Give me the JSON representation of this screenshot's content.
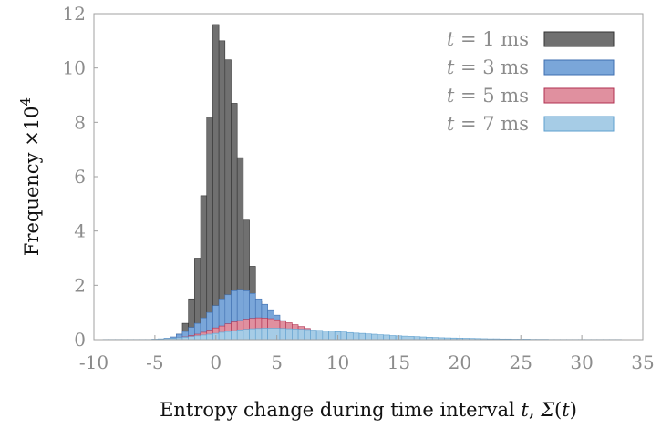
{
  "chart_data": {
    "type": "bar",
    "xlabel": "Entropy change during time interval t, Σ(t)",
    "ylabel": "Frequency ×10⁴",
    "xlim": [
      -10,
      35
    ],
    "ylim": [
      0,
      12
    ],
    "xticks": [
      -10,
      -5,
      0,
      5,
      10,
      15,
      20,
      25,
      30,
      35
    ],
    "yticks": [
      0,
      2,
      4,
      6,
      8,
      10,
      12
    ],
    "xtick_labels": [
      "-10",
      "-5",
      "0",
      "5",
      "10",
      "15",
      "20",
      "25",
      "30",
      "35"
    ],
    "ytick_labels": [
      "0",
      "2",
      "4",
      "6",
      "8",
      "10",
      "12"
    ],
    "legend_position": "top-right",
    "bin_width": 0.5,
    "grid": false,
    "series": [
      {
        "name": "t = 1 ms",
        "color": "#707070",
        "x": [
          -3.5,
          -3,
          -2.5,
          -2,
          -1.5,
          -1,
          -0.5,
          0,
          0.5,
          1,
          1.5,
          2,
          2.5,
          3,
          3.5,
          4,
          4.5
        ],
        "values": [
          0.05,
          0.2,
          0.6,
          1.5,
          3.0,
          5.3,
          8.2,
          11.6,
          11.0,
          10.3,
          8.7,
          6.7,
          4.4,
          2.7,
          1.4,
          0.5,
          0.15
        ]
      },
      {
        "name": "t = 3 ms",
        "color": "#7aa6d9",
        "x": [
          -4.5,
          -4,
          -3.5,
          -3,
          -2.5,
          -2,
          -1.5,
          -1,
          -0.5,
          0,
          0.5,
          1,
          1.5,
          2,
          2.5,
          3,
          3.5,
          4,
          4.5,
          5,
          5.5,
          6,
          6.5,
          7,
          7.5,
          8,
          8.5,
          9,
          9.5
        ],
        "values": [
          0.02,
          0.05,
          0.1,
          0.2,
          0.3,
          0.45,
          0.6,
          0.8,
          1.0,
          1.25,
          1.5,
          1.65,
          1.8,
          1.85,
          1.8,
          1.7,
          1.5,
          1.3,
          1.1,
          0.9,
          0.7,
          0.55,
          0.42,
          0.3,
          0.2,
          0.14,
          0.09,
          0.05,
          0.03
        ]
      },
      {
        "name": "t = 5 ms",
        "color": "#e0909f",
        "x": [
          -4,
          -3.5,
          -3,
          -2.5,
          -2,
          -1.5,
          -1,
          -0.5,
          0,
          0.5,
          1,
          1.5,
          2,
          2.5,
          3,
          3.5,
          4,
          4.5,
          5,
          5.5,
          6,
          6.5,
          7,
          7.5,
          8,
          8.5,
          9,
          9.5,
          10,
          10.5,
          11
        ],
        "values": [
          0.02,
          0.04,
          0.07,
          0.1,
          0.15,
          0.2,
          0.27,
          0.35,
          0.43,
          0.5,
          0.58,
          0.65,
          0.7,
          0.75,
          0.78,
          0.8,
          0.79,
          0.77,
          0.73,
          0.68,
          0.62,
          0.55,
          0.48,
          0.41,
          0.34,
          0.28,
          0.22,
          0.17,
          0.13,
          0.09,
          0.06
        ]
      },
      {
        "name": "t = 7 ms",
        "color": "#a6cce6",
        "x": [
          -9,
          -8.5,
          -8,
          -7.5,
          -7,
          -6.5,
          -6,
          -5.5,
          -5,
          -4.5,
          -4,
          -3.5,
          -3,
          -2.5,
          -2,
          -1.5,
          -1,
          -0.5,
          0,
          0.5,
          1,
          1.5,
          2,
          2.5,
          3,
          3.5,
          4,
          4.5,
          5,
          5.5,
          6,
          6.5,
          7,
          7.5,
          8,
          8.5,
          9,
          9.5,
          10,
          10.5,
          11,
          11.5,
          12,
          12.5,
          13,
          13.5,
          14,
          14.5,
          15,
          15.5,
          16,
          16.5,
          17,
          17.5,
          18,
          18.5,
          19,
          19.5,
          20,
          20.5,
          21,
          21.5,
          22,
          22.5,
          23,
          23.5,
          24,
          24.5,
          25,
          25.5,
          26,
          26.5,
          27,
          27.5,
          28,
          28.5,
          29,
          29.5,
          30,
          30.5,
          31,
          31.5,
          32,
          32.5,
          33
        ],
        "values": [
          0.01,
          0.01,
          0.01,
          0.01,
          0.01,
          0.01,
          0.01,
          0.01,
          0.02,
          0.03,
          0.04,
          0.05,
          0.07,
          0.09,
          0.11,
          0.14,
          0.17,
          0.2,
          0.23,
          0.27,
          0.3,
          0.33,
          0.36,
          0.38,
          0.4,
          0.41,
          0.42,
          0.42,
          0.42,
          0.41,
          0.4,
          0.39,
          0.38,
          0.37,
          0.35,
          0.34,
          0.32,
          0.31,
          0.29,
          0.28,
          0.26,
          0.24,
          0.23,
          0.21,
          0.2,
          0.18,
          0.17,
          0.15,
          0.14,
          0.13,
          0.12,
          0.11,
          0.1,
          0.09,
          0.08,
          0.07,
          0.065,
          0.06,
          0.055,
          0.05,
          0.045,
          0.04,
          0.035,
          0.03,
          0.03,
          0.025,
          0.025,
          0.02,
          0.02,
          0.02,
          0.015,
          0.015,
          0.015,
          0.01,
          0.01,
          0.01,
          0.01,
          0.01,
          0.01,
          0.01,
          0.01,
          0.01,
          0.01,
          0.01,
          0.01
        ]
      }
    ],
    "legend_entries": [
      {
        "var": "t",
        "rest": " = 1 ms"
      },
      {
        "var": "t",
        "rest": " = 3 ms"
      },
      {
        "var": "t",
        "rest": " = 5 ms"
      },
      {
        "var": "t",
        "rest": " = 7 ms"
      }
    ],
    "xlabel_parts": {
      "prefix": "Entropy change during time interval ",
      "var_t": "t",
      "sep": ", ",
      "sigma": "Σ",
      "open": "(",
      "var_t2": "t",
      "close": ")"
    },
    "ylabel_parts": {
      "main": "Frequency ×10",
      "exp": "4"
    }
  }
}
